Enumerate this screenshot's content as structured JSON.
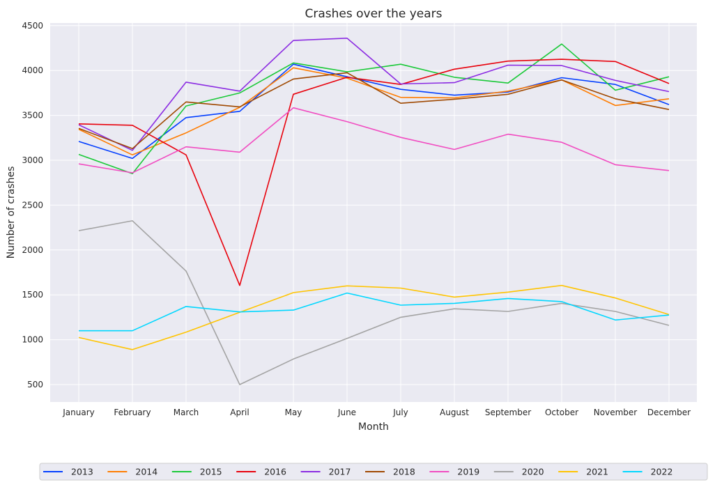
{
  "chart_data": {
    "type": "line",
    "title": "Crashes over the years",
    "xlabel": "Month",
    "ylabel": "Number of crashes",
    "ylim": [
      320,
      4530
    ],
    "yticks": [
      500,
      1000,
      1500,
      2000,
      2500,
      3000,
      3500,
      4000,
      4500
    ],
    "grid": true,
    "legend_position": "bottom",
    "categories": [
      "January",
      "February",
      "March",
      "April",
      "May",
      "June",
      "July",
      "August",
      "September",
      "October",
      "November",
      "December"
    ],
    "series": [
      {
        "name": "2013",
        "color": "#023eff",
        "values": [
          3210,
          3020,
          3475,
          3545,
          4070,
          3930,
          3790,
          3725,
          3760,
          3920,
          3845,
          3620
        ]
      },
      {
        "name": "2014",
        "color": "#ff7c00",
        "values": [
          3345,
          3060,
          3305,
          3590,
          4030,
          3915,
          3700,
          3695,
          3770,
          3895,
          3610,
          3685
        ]
      },
      {
        "name": "2015",
        "color": "#1ac938",
        "values": [
          3065,
          2850,
          3605,
          3750,
          4085,
          3985,
          4070,
          3925,
          3860,
          4295,
          3780,
          3930
        ]
      },
      {
        "name": "2016",
        "color": "#e8000b",
        "values": [
          3405,
          3390,
          3060,
          1605,
          3735,
          3925,
          3845,
          4015,
          4105,
          4125,
          4100,
          3855
        ]
      },
      {
        "name": "2017",
        "color": "#8b2be2",
        "values": [
          3395,
          3110,
          3870,
          3770,
          4335,
          4360,
          3850,
          3865,
          4060,
          4055,
          3890,
          3765
        ]
      },
      {
        "name": "2018",
        "color": "#9f4800",
        "values": [
          3355,
          3130,
          3650,
          3595,
          3905,
          3975,
          3635,
          3680,
          3735,
          3895,
          3685,
          3565
        ]
      },
      {
        "name": "2019",
        "color": "#f14cc1",
        "values": [
          2960,
          2860,
          3150,
          3090,
          3585,
          3430,
          3255,
          3120,
          3290,
          3200,
          2950,
          2885
        ]
      },
      {
        "name": "2020",
        "color": "#a3a3a3",
        "values": [
          2215,
          2325,
          1765,
          500,
          785,
          1015,
          1250,
          1345,
          1315,
          1405,
          1315,
          1160
        ]
      },
      {
        "name": "2021",
        "color": "#ffc400",
        "values": [
          1025,
          890,
          1085,
          1305,
          1525,
          1600,
          1575,
          1475,
          1530,
          1605,
          1465,
          1280
        ]
      },
      {
        "name": "2022",
        "color": "#00d7ff",
        "values": [
          1100,
          1100,
          1370,
          1310,
          1330,
          1520,
          1385,
          1405,
          1460,
          1425,
          1220,
          1275
        ]
      }
    ]
  }
}
